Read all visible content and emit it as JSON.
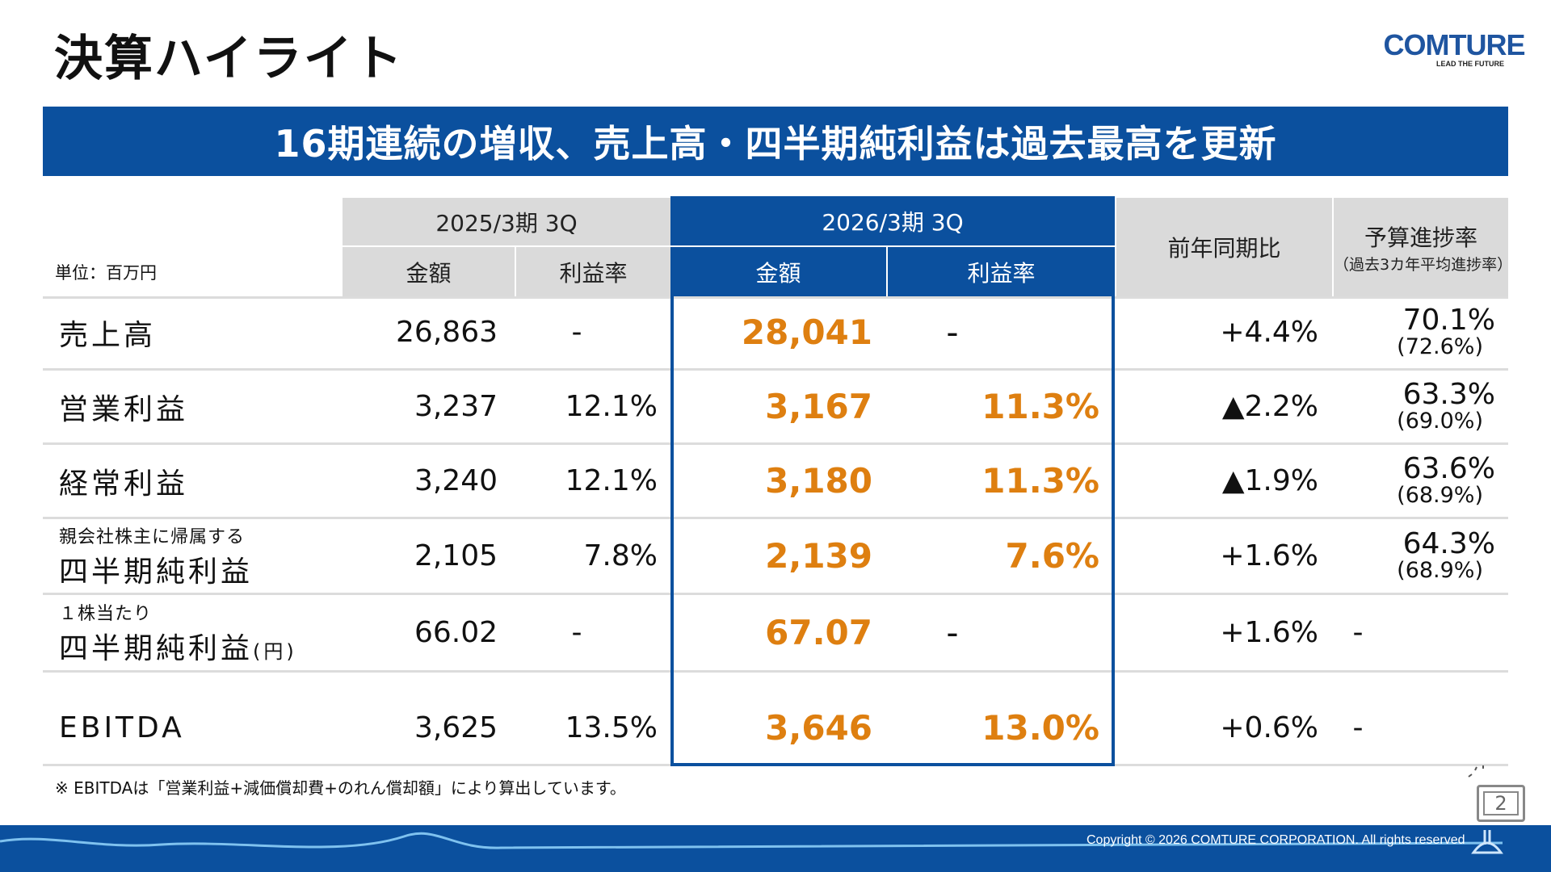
{
  "title": "決算ハイライト",
  "logo": {
    "text": "COMTURE",
    "tagline": "LEAD THE FUTURE"
  },
  "banner": "16期連続の増収、売上高・四半期純利益は過去最高を更新",
  "colors": {
    "brand_blue": "#0b509e",
    "highlight_orange": "#de7f10",
    "header_gray": "#dadada"
  },
  "table": {
    "unit": "単位：百万円",
    "prev_period": "2025/3期 3Q",
    "curr_period": "2026/3期 3Q",
    "amount": "金額",
    "margin": "利益率",
    "yoy": "前年同期比",
    "budget": "予算進捗率",
    "budget_sub": "（過去3カ年平均進捗率）",
    "rows": [
      {
        "pre": "",
        "label": "売上高",
        "suffix": "",
        "prev_amt": "26,863",
        "prev_m": "-",
        "cur_amt": "28,041",
        "cur_m": "-",
        "yoy": "+4.4%",
        "bud": "70.1%",
        "bud_sub": "(72.6%)"
      },
      {
        "pre": "",
        "label": "営業利益",
        "suffix": "",
        "prev_amt": "3,237",
        "prev_m": "12.1%",
        "cur_amt": "3,167",
        "cur_m": "11.3%",
        "yoy": "▲2.2%",
        "bud": "63.3%",
        "bud_sub": "(69.0%)"
      },
      {
        "pre": "",
        "label": "経常利益",
        "suffix": "",
        "prev_amt": "3,240",
        "prev_m": "12.1%",
        "cur_amt": "3,180",
        "cur_m": "11.3%",
        "yoy": "▲1.9%",
        "bud": "63.6%",
        "bud_sub": "(68.9%)"
      },
      {
        "pre": "親会社株主に帰属する",
        "label": "四半期純利益",
        "suffix": "",
        "prev_amt": "2,105",
        "prev_m": "7.8%",
        "cur_amt": "2,139",
        "cur_m": "7.6%",
        "yoy": "+1.6%",
        "bud": "64.3%",
        "bud_sub": "(68.9%)"
      },
      {
        "pre": "１株当たり",
        "label": "四半期純利益",
        "suffix": "(円)",
        "prev_amt": "66.02",
        "prev_m": "-",
        "cur_amt": "67.07",
        "cur_m": "-",
        "yoy": "+1.6%",
        "bud": "-",
        "bud_sub": ""
      },
      {
        "pre": "",
        "label": "EBITDA",
        "suffix": "",
        "prev_amt": "3,625",
        "prev_m": "13.5%",
        "cur_amt": "3,646",
        "cur_m": "13.0%",
        "yoy": "+0.6%",
        "bud": "-",
        "bud_sub": ""
      }
    ]
  },
  "footnote": "※ EBITDAは「営業利益+減価償却費+のれん償却額」により算出しています。",
  "copyright": "Copyright © 2026 COMTURE CORPORATION. All rights reserved",
  "page_number": "2"
}
